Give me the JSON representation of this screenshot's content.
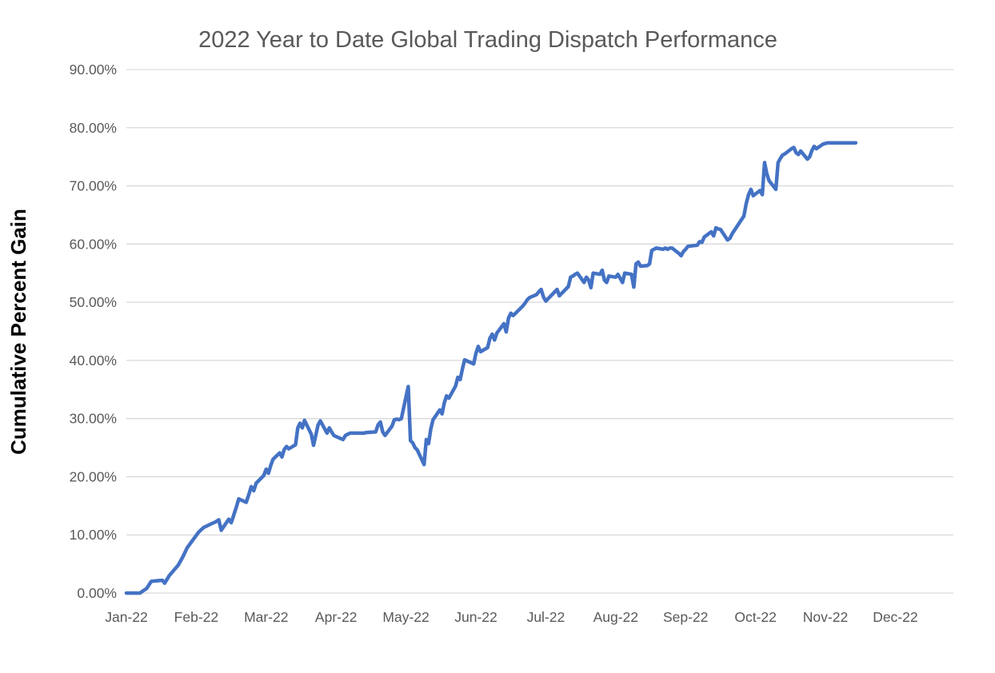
{
  "title": "2022 Year to Date Global Trading Dispatch Performance",
  "colors": {
    "line": "#4472C4",
    "title_text": "#595959",
    "tick_text": "#595959",
    "axis_title_text": "#000000",
    "gridline": "#D9D9D9",
    "background": "#FFFFFF"
  },
  "chart_data": {
    "type": "line",
    "title": "2022 Year to Date Global Trading Dispatch Performance",
    "xlabel": "",
    "ylabel": "Cumulative Percent Gain",
    "ylim": [
      0,
      90
    ],
    "ytick_step": 10,
    "ytick_labels": [
      "0.00%",
      "10.00%",
      "20.00%",
      "30.00%",
      "40.00%",
      "50.00%",
      "60.00%",
      "70.00%",
      "80.00%",
      "90.00%"
    ],
    "x_tick_labels": [
      "Jan-22",
      "Feb-22",
      "Mar-22",
      "Apr-22",
      "May-22",
      "Jun-22",
      "Jul-22",
      "Aug-22",
      "Sep-22",
      "Oct-22",
      "Nov-22",
      "Dec-22"
    ],
    "grid": "horizontal",
    "legend": "none",
    "series": [
      {
        "name": "Cumulative Percent Gain",
        "points": [
          [
            "2022-01-01",
            0.0
          ],
          [
            "2022-01-03",
            0.0
          ],
          [
            "2022-01-05",
            0.0
          ],
          [
            "2022-01-07",
            0.0
          ],
          [
            "2022-01-10",
            0.8
          ],
          [
            "2022-01-12",
            2.0
          ],
          [
            "2022-01-14",
            2.1
          ],
          [
            "2022-01-17",
            2.2
          ],
          [
            "2022-01-18",
            1.7
          ],
          [
            "2022-01-20",
            3.0
          ],
          [
            "2022-01-24",
            4.8
          ],
          [
            "2022-01-26",
            6.2
          ],
          [
            "2022-01-28",
            7.8
          ],
          [
            "2022-01-31",
            9.4
          ],
          [
            "2022-02-02",
            10.5
          ],
          [
            "2022-02-04",
            11.3
          ],
          [
            "2022-02-07",
            11.9
          ],
          [
            "2022-02-09",
            12.3
          ],
          [
            "2022-02-10",
            12.6
          ],
          [
            "2022-02-11",
            10.8
          ],
          [
            "2022-02-14",
            12.7
          ],
          [
            "2022-02-15",
            12.1
          ],
          [
            "2022-02-16",
            13.4
          ],
          [
            "2022-02-17",
            14.7
          ],
          [
            "2022-02-18",
            16.2
          ],
          [
            "2022-02-21",
            15.6
          ],
          [
            "2022-02-22",
            16.9
          ],
          [
            "2022-02-23",
            18.3
          ],
          [
            "2022-02-24",
            17.6
          ],
          [
            "2022-02-25",
            18.9
          ],
          [
            "2022-02-28",
            20.2
          ],
          [
            "2022-03-01",
            21.3
          ],
          [
            "2022-03-02",
            20.6
          ],
          [
            "2022-03-03",
            21.9
          ],
          [
            "2022-03-04",
            23.0
          ],
          [
            "2022-03-07",
            24.1
          ],
          [
            "2022-03-08",
            23.4
          ],
          [
            "2022-03-09",
            24.7
          ],
          [
            "2022-03-10",
            25.2
          ],
          [
            "2022-03-11",
            24.8
          ],
          [
            "2022-03-14",
            25.5
          ],
          [
            "2022-03-15",
            28.4
          ],
          [
            "2022-03-16",
            29.2
          ],
          [
            "2022-03-17",
            28.4
          ],
          [
            "2022-03-18",
            29.7
          ],
          [
            "2022-03-21",
            27.3
          ],
          [
            "2022-03-22",
            25.4
          ],
          [
            "2022-03-23",
            27.1
          ],
          [
            "2022-03-24",
            28.9
          ],
          [
            "2022-03-25",
            29.6
          ],
          [
            "2022-03-28",
            27.5
          ],
          [
            "2022-03-29",
            28.4
          ],
          [
            "2022-03-30",
            27.7
          ],
          [
            "2022-03-31",
            27.1
          ],
          [
            "2022-04-01",
            26.9
          ],
          [
            "2022-04-04",
            26.4
          ],
          [
            "2022-04-05",
            27.1
          ],
          [
            "2022-04-06",
            27.3
          ],
          [
            "2022-04-07",
            27.5
          ],
          [
            "2022-04-08",
            27.5
          ],
          [
            "2022-04-11",
            27.5
          ],
          [
            "2022-04-12",
            27.5
          ],
          [
            "2022-04-13",
            27.5
          ],
          [
            "2022-04-14",
            27.6
          ],
          [
            "2022-04-18",
            27.7
          ],
          [
            "2022-04-19",
            28.9
          ],
          [
            "2022-04-20",
            29.4
          ],
          [
            "2022-04-21",
            27.7
          ],
          [
            "2022-04-22",
            27.1
          ],
          [
            "2022-04-25",
            28.7
          ],
          [
            "2022-04-26",
            29.8
          ],
          [
            "2022-04-27",
            29.9
          ],
          [
            "2022-04-28",
            29.8
          ],
          [
            "2022-04-29",
            30.0
          ],
          [
            "2022-05-02",
            35.5
          ],
          [
            "2022-05-03",
            26.2
          ],
          [
            "2022-05-04",
            25.8
          ],
          [
            "2022-05-05",
            25.0
          ],
          [
            "2022-05-06",
            24.6
          ],
          [
            "2022-05-09",
            22.1
          ],
          [
            "2022-05-10",
            26.4
          ],
          [
            "2022-05-11",
            25.7
          ],
          [
            "2022-05-12",
            28.2
          ],
          [
            "2022-05-13",
            29.8
          ],
          [
            "2022-05-16",
            31.5
          ],
          [
            "2022-05-17",
            30.8
          ],
          [
            "2022-05-18",
            32.7
          ],
          [
            "2022-05-19",
            33.9
          ],
          [
            "2022-05-20",
            33.5
          ],
          [
            "2022-05-23",
            35.6
          ],
          [
            "2022-05-24",
            37.1
          ],
          [
            "2022-05-25",
            36.7
          ],
          [
            "2022-05-26",
            38.5
          ],
          [
            "2022-05-27",
            40.1
          ],
          [
            "2022-05-31",
            39.4
          ],
          [
            "2022-06-01",
            41.2
          ],
          [
            "2022-06-02",
            42.4
          ],
          [
            "2022-06-03",
            41.5
          ],
          [
            "2022-06-06",
            42.2
          ],
          [
            "2022-06-07",
            43.8
          ],
          [
            "2022-06-08",
            44.5
          ],
          [
            "2022-06-09",
            43.5
          ],
          [
            "2022-06-10",
            44.7
          ],
          [
            "2022-06-13",
            46.3
          ],
          [
            "2022-06-14",
            44.9
          ],
          [
            "2022-06-15",
            47.3
          ],
          [
            "2022-06-16",
            48.1
          ],
          [
            "2022-06-17",
            47.7
          ],
          [
            "2022-06-21",
            49.3
          ],
          [
            "2022-06-22",
            49.8
          ],
          [
            "2022-06-23",
            50.4
          ],
          [
            "2022-06-24",
            50.8
          ],
          [
            "2022-06-27",
            51.3
          ],
          [
            "2022-06-28",
            51.8
          ],
          [
            "2022-06-29",
            52.2
          ],
          [
            "2022-06-30",
            50.9
          ],
          [
            "2022-07-01",
            50.2
          ],
          [
            "2022-07-05",
            51.8
          ],
          [
            "2022-07-06",
            52.2
          ],
          [
            "2022-07-07",
            51.1
          ],
          [
            "2022-07-08",
            51.5
          ],
          [
            "2022-07-11",
            52.7
          ],
          [
            "2022-07-12",
            54.3
          ],
          [
            "2022-07-13",
            54.5
          ],
          [
            "2022-07-14",
            54.8
          ],
          [
            "2022-07-15",
            55.0
          ],
          [
            "2022-07-18",
            53.4
          ],
          [
            "2022-07-19",
            54.3
          ],
          [
            "2022-07-20",
            53.8
          ],
          [
            "2022-07-21",
            52.5
          ],
          [
            "2022-07-22",
            55.0
          ],
          [
            "2022-07-25",
            54.8
          ],
          [
            "2022-07-26",
            55.5
          ],
          [
            "2022-07-27",
            53.8
          ],
          [
            "2022-07-28",
            53.4
          ],
          [
            "2022-07-29",
            54.5
          ],
          [
            "2022-08-01",
            54.3
          ],
          [
            "2022-08-02",
            54.8
          ],
          [
            "2022-08-03",
            54.1
          ],
          [
            "2022-08-04",
            53.4
          ],
          [
            "2022-08-05",
            55.0
          ],
          [
            "2022-08-08",
            54.8
          ],
          [
            "2022-08-09",
            52.6
          ],
          [
            "2022-08-10",
            56.6
          ],
          [
            "2022-08-11",
            56.9
          ],
          [
            "2022-08-12",
            56.2
          ],
          [
            "2022-08-15",
            56.3
          ],
          [
            "2022-08-16",
            56.6
          ],
          [
            "2022-08-17",
            58.9
          ],
          [
            "2022-08-18",
            59.1
          ],
          [
            "2022-08-19",
            59.3
          ],
          [
            "2022-08-22",
            59.1
          ],
          [
            "2022-08-23",
            59.3
          ],
          [
            "2022-08-24",
            59.1
          ],
          [
            "2022-08-25",
            59.3
          ],
          [
            "2022-08-26",
            59.3
          ],
          [
            "2022-08-29",
            58.4
          ],
          [
            "2022-08-30",
            58.0
          ],
          [
            "2022-08-31",
            58.7
          ],
          [
            "2022-09-01",
            59.1
          ],
          [
            "2022-09-02",
            59.6
          ],
          [
            "2022-09-06",
            59.8
          ],
          [
            "2022-09-07",
            60.4
          ],
          [
            "2022-09-08",
            60.3
          ],
          [
            "2022-09-09",
            61.2
          ],
          [
            "2022-09-12",
            62.1
          ],
          [
            "2022-09-13",
            61.4
          ],
          [
            "2022-09-14",
            62.8
          ],
          [
            "2022-09-15",
            62.6
          ],
          [
            "2022-09-16",
            62.5
          ],
          [
            "2022-09-19",
            60.7
          ],
          [
            "2022-09-20",
            61.0
          ],
          [
            "2022-09-21",
            61.8
          ],
          [
            "2022-09-23",
            63.0
          ],
          [
            "2022-09-26",
            64.8
          ],
          [
            "2022-09-27",
            66.9
          ],
          [
            "2022-09-28",
            68.5
          ],
          [
            "2022-09-29",
            69.4
          ],
          [
            "2022-09-30",
            68.3
          ],
          [
            "2022-10-03",
            69.2
          ],
          [
            "2022-10-04",
            68.5
          ],
          [
            "2022-10-05",
            74.0
          ],
          [
            "2022-10-06",
            72.1
          ],
          [
            "2022-10-07",
            70.9
          ],
          [
            "2022-10-10",
            69.4
          ],
          [
            "2022-10-11",
            74.0
          ],
          [
            "2022-10-12",
            74.7
          ],
          [
            "2022-10-13",
            75.3
          ],
          [
            "2022-10-14",
            75.5
          ],
          [
            "2022-10-17",
            76.4
          ],
          [
            "2022-10-18",
            76.6
          ],
          [
            "2022-10-19",
            75.7
          ],
          [
            "2022-10-20",
            75.4
          ],
          [
            "2022-10-21",
            76.0
          ],
          [
            "2022-10-24",
            74.6
          ],
          [
            "2022-10-25",
            75.0
          ],
          [
            "2022-10-26",
            76.1
          ],
          [
            "2022-10-27",
            76.8
          ],
          [
            "2022-10-28",
            76.4
          ],
          [
            "2022-10-31",
            77.2
          ],
          [
            "2022-11-01",
            77.3
          ],
          [
            "2022-11-02",
            77.4
          ],
          [
            "2022-11-04",
            77.4
          ],
          [
            "2022-11-07",
            77.4
          ],
          [
            "2022-11-09",
            77.4
          ],
          [
            "2022-11-11",
            77.4
          ],
          [
            "2022-11-14",
            77.4
          ]
        ]
      }
    ]
  }
}
